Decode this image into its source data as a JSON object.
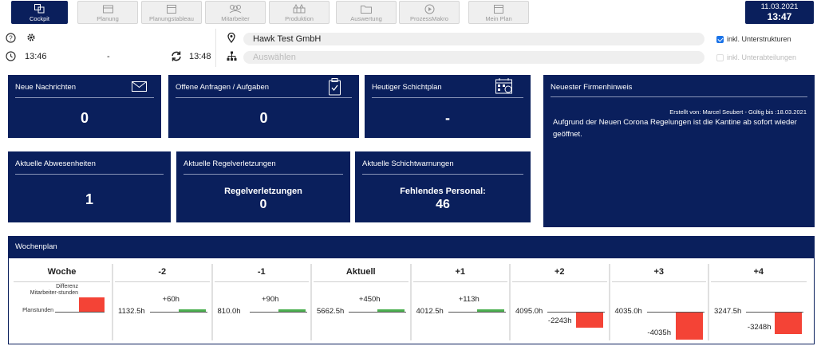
{
  "nav": {
    "items": [
      {
        "label": "Cockpit",
        "icon": "cockpit-icon",
        "active": true
      },
      {
        "label": "Planung",
        "icon": "planning-icon",
        "active": false
      },
      {
        "label": "Planungstableau",
        "icon": "calendar-icon",
        "active": false
      },
      {
        "label": "Mitarbeiter",
        "icon": "people-icon",
        "active": false
      },
      {
        "label": "Produktion",
        "icon": "production-icon",
        "active": false
      },
      {
        "label": "Auswertung",
        "icon": "folder-icon",
        "active": false
      },
      {
        "label": "ProzessMakro",
        "icon": "play-icon",
        "active": false
      },
      {
        "label": "Mein Plan",
        "icon": "calendar-icon",
        "active": false
      }
    ],
    "date": "11.03.2021",
    "time": "13:47"
  },
  "info": {
    "time_from": "13:46",
    "separator": "-",
    "refresh_time": "13:48",
    "company": "Hawk Test GmbH",
    "structure_placeholder": "Auswählen",
    "check_substructures": "inkl. Unterstrukturen",
    "check_subdepartments": "inkl. Unterabteilungen"
  },
  "cards": {
    "messages": {
      "title": "Neue Nachrichten",
      "value": "0"
    },
    "requests": {
      "title": "Offene Anfragen / Aufgaben",
      "value": "0"
    },
    "shiftplan": {
      "title": "Heutiger Schichtplan",
      "value": "-"
    },
    "absences": {
      "title": "Aktuelle Abwesenheiten",
      "value": "1"
    },
    "violations": {
      "title": "Aktuelle Regelverletzungen",
      "sub": "Regelverletzungen",
      "value": "0"
    },
    "warnings": {
      "title": "Aktuelle Schichtwarnungen",
      "sub": "Fehlendes Personal:",
      "value": "46"
    },
    "notice": {
      "title": "Neuester Firmenhinweis",
      "meta": "Erstellt von: Marcel Seubert - Gültig bis :18.03.2021",
      "message": "Aufgrund der Neuen Corona Regelungen ist die Kantine ab sofort wieder geöffnet."
    }
  },
  "wochenplan": {
    "title": "Wochenplan",
    "legend_header": "Woche",
    "legend_diff": "Differenz Mitarbeiter-stunden",
    "legend_plan": "Planstunden",
    "colors": {
      "positive": "#4caf50",
      "negative": "#f44336",
      "header": "#0a1f5c"
    },
    "weeks": [
      {
        "label": "-2",
        "plan": "1132.5h",
        "diff": "+60h",
        "diff_value": 60
      },
      {
        "label": "-1",
        "plan": "810.0h",
        "diff": "+90h",
        "diff_value": 90
      },
      {
        "label": "Aktuell",
        "plan": "5662.5h",
        "diff": "+450h",
        "diff_value": 450
      },
      {
        "label": "+1",
        "plan": "4012.5h",
        "diff": "+113h",
        "diff_value": 113
      },
      {
        "label": "+2",
        "plan": "4095.0h",
        "diff": "-2243h",
        "diff_value": -2243
      },
      {
        "label": "+3",
        "plan": "4035.0h",
        "diff": "-4035h",
        "diff_value": -4035
      },
      {
        "label": "+4",
        "plan": "3247.5h",
        "diff": "-3248h",
        "diff_value": -3248
      }
    ]
  }
}
